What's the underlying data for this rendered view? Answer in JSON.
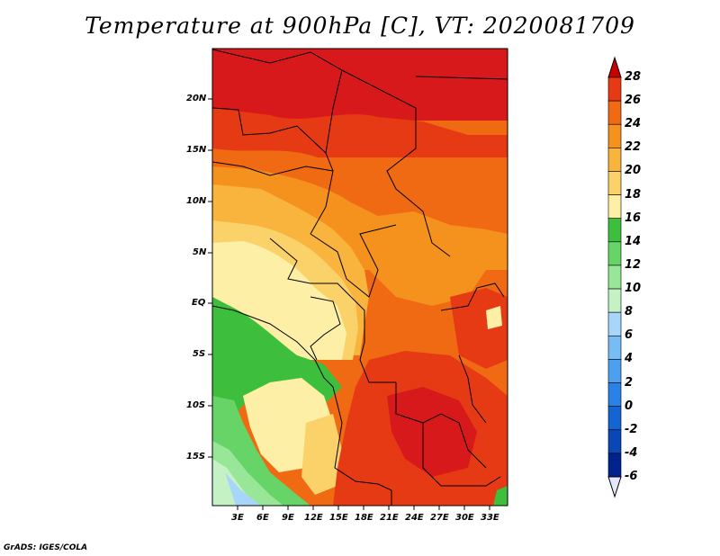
{
  "title": "Temperature at 900hPa [C], VT: 2020081709",
  "credit": "GrADS: IGES/COLA",
  "map": {
    "lat_labels": [
      "20N",
      "15N",
      "10N",
      "5N",
      "EQ",
      "5S",
      "10S",
      "15S"
    ],
    "lon_labels": [
      "3E",
      "6E",
      "9E",
      "12E",
      "15E",
      "18E",
      "21E",
      "24E",
      "27E",
      "30E",
      "33E"
    ]
  },
  "colorbar": {
    "levels": [
      "28",
      "26",
      "24",
      "22",
      "20",
      "18",
      "16",
      "14",
      "12",
      "10",
      "8",
      "6",
      "4",
      "2",
      "0",
      "-2",
      "-4",
      "-6"
    ],
    "colors": [
      "#d7191c",
      "#e63a14",
      "#f06a14",
      "#f5921e",
      "#f8b43c",
      "#fbd26a",
      "#fdf0a6",
      "#3dbf3d",
      "#66d466",
      "#98e698",
      "#c4f2c4",
      "#a8d6fa",
      "#78bcf5",
      "#4ea0ef",
      "#2a82e6",
      "#1464d2",
      "#0a46b4",
      "#00228c",
      "#0a0a5a"
    ],
    "top_color": "#c80000",
    "bottom_color": "#e6e6ff"
  }
}
